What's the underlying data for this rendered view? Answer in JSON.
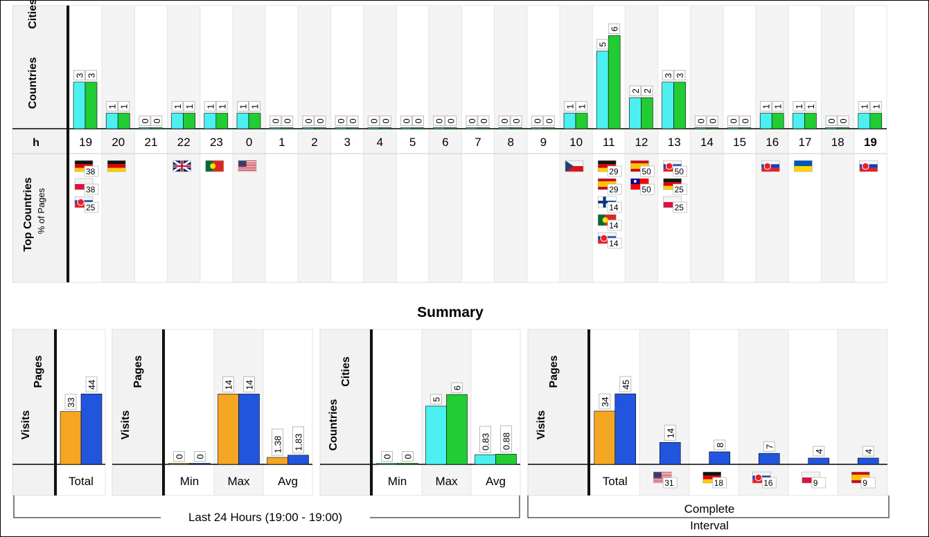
{
  "hourly": {
    "row_labels": {
      "series_a": "Countries",
      "series_b": "Cities",
      "hour": "h",
      "top_countries": "Top Countries",
      "top_countries_sub": "% of Pages"
    },
    "colors": {
      "countries": "#4df0f0",
      "cities": "#22cc33"
    }
  },
  "chart_data": [
    {
      "type": "bar",
      "title": "",
      "xlabel": "h",
      "categories": [
        "19",
        "20",
        "21",
        "22",
        "23",
        "0",
        "1",
        "2",
        "3",
        "4",
        "5",
        "6",
        "7",
        "8",
        "9",
        "10",
        "11",
        "12",
        "13",
        "14",
        "15",
        "16",
        "17",
        "18",
        "19"
      ],
      "series": [
        {
          "name": "Countries",
          "values": [
            3,
            1,
            0,
            1,
            1,
            1,
            0,
            0,
            0,
            0,
            0,
            0,
            0,
            0,
            0,
            1,
            5,
            2,
            3,
            0,
            0,
            1,
            1,
            0,
            1
          ]
        },
        {
          "name": "Cities",
          "values": [
            3,
            1,
            0,
            1,
            1,
            1,
            0,
            0,
            0,
            0,
            0,
            0,
            0,
            0,
            0,
            1,
            6,
            2,
            3,
            0,
            0,
            1,
            1,
            0,
            1
          ]
        }
      ],
      "ylim": [
        0,
        6.6
      ],
      "top_countries": [
        [
          {
            "flag": "de",
            "pct": "38"
          },
          {
            "flag": "pl",
            "pct": "38"
          },
          {
            "flag": "sk",
            "pct": "25"
          }
        ],
        [
          {
            "flag": "de",
            "pct": ""
          }
        ],
        [],
        [
          {
            "flag": "gb",
            "pct": ""
          }
        ],
        [
          {
            "flag": "pt",
            "pct": ""
          }
        ],
        [
          {
            "flag": "us",
            "pct": ""
          }
        ],
        [],
        [],
        [],
        [],
        [],
        [],
        [],
        [],
        [],
        [
          {
            "flag": "cz",
            "pct": ""
          }
        ],
        [
          {
            "flag": "de",
            "pct": "29"
          },
          {
            "flag": "es",
            "pct": "29"
          },
          {
            "flag": "fi",
            "pct": "14"
          },
          {
            "flag": "pt",
            "pct": "14"
          },
          {
            "flag": "sk",
            "pct": "14"
          }
        ],
        [
          {
            "flag": "es",
            "pct": "50"
          },
          {
            "flag": "tw",
            "pct": "50"
          }
        ],
        [
          {
            "flag": "sk",
            "pct": "50"
          },
          {
            "flag": "de",
            "pct": "25"
          },
          {
            "flag": "pl",
            "pct": "25"
          }
        ],
        [],
        [],
        [
          {
            "flag": "sk",
            "pct": ""
          }
        ],
        [
          {
            "flag": "ua",
            "pct": ""
          }
        ],
        [],
        [
          {
            "flag": "sk",
            "pct": ""
          }
        ]
      ]
    },
    {
      "type": "bar",
      "title": "Summary",
      "categories": [
        "Total"
      ],
      "series": [
        {
          "name": "Visits",
          "values": [
            33
          ]
        },
        {
          "name": "Pages",
          "values": [
            44
          ]
        }
      ],
      "ylim": [
        0,
        48
      ]
    },
    {
      "type": "bar",
      "categories": [
        "Min",
        "Max",
        "Avg"
      ],
      "series": [
        {
          "name": "Visits",
          "values": [
            0,
            14,
            1.38
          ]
        },
        {
          "name": "Pages",
          "values": [
            0,
            14,
            1.83
          ]
        }
      ],
      "ylim": [
        0,
        15.3
      ]
    },
    {
      "type": "bar",
      "categories": [
        "Min",
        "Max",
        "Avg"
      ],
      "series": [
        {
          "name": "Countries",
          "values": [
            0,
            5,
            0.83
          ]
        },
        {
          "name": "Cities",
          "values": [
            0,
            6,
            0.88
          ]
        }
      ],
      "ylim": [
        0,
        6.6
      ]
    },
    {
      "type": "bar",
      "categories": [
        "Total",
        "us",
        "de",
        "sk",
        "pl",
        "es"
      ],
      "category_pcts": [
        "",
        "31",
        "18",
        "16",
        "9",
        "9"
      ],
      "series": [
        {
          "name": "Visits",
          "values": [
            34,
            null,
            null,
            null,
            null,
            null
          ]
        },
        {
          "name": "Pages",
          "values": [
            45,
            14,
            8,
            7,
            4,
            4
          ]
        }
      ],
      "ylim": [
        0,
        49
      ]
    }
  ],
  "summary": {
    "title": "Summary",
    "label_visits": "Visits",
    "label_pages": "Pages",
    "label_countries": "Countries",
    "label_cities": "Cities",
    "bracket_left": "Last 24 Hours (19:00 - 19:00)",
    "bracket_right_line1": "Complete",
    "bracket_right_line2": "Interval",
    "colors": {
      "visits": "#f5a623",
      "pages": "#2255dd"
    }
  }
}
